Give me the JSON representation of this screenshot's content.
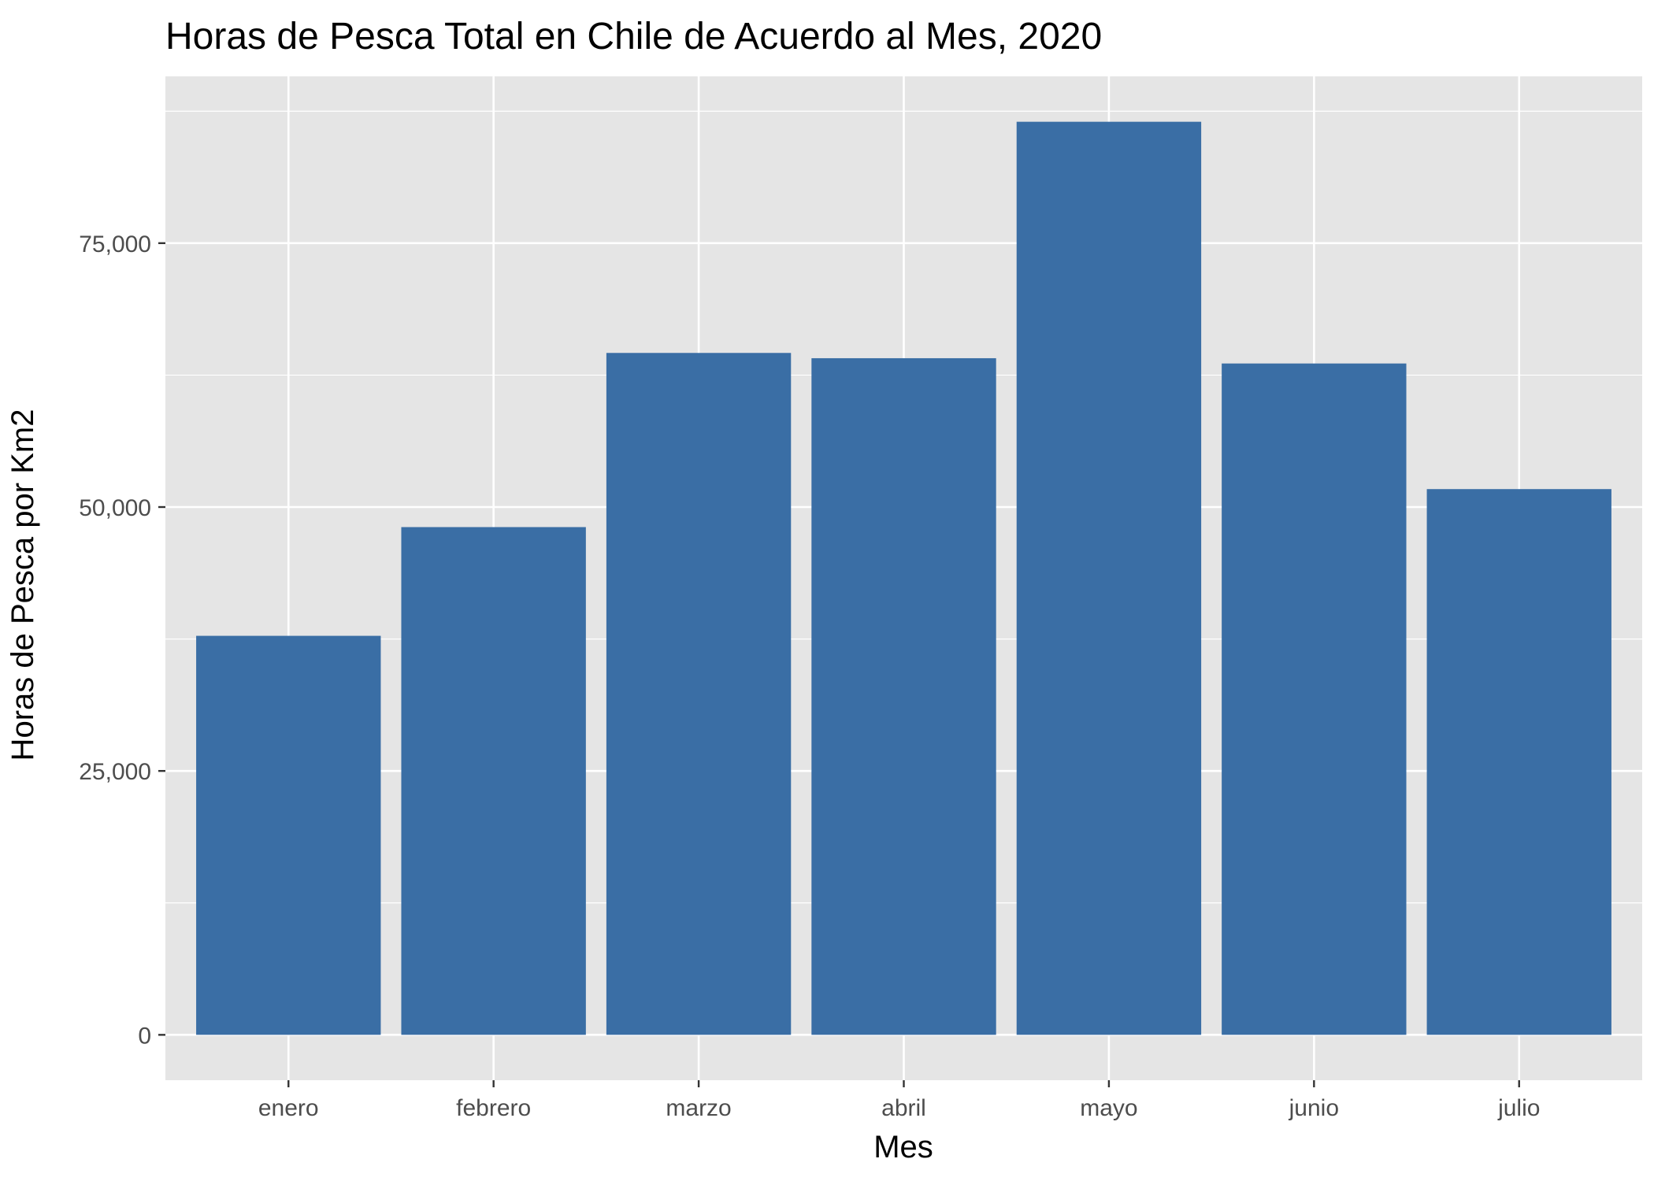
{
  "chart_data": {
    "type": "bar",
    "title": "Horas de Pesca Total en Chile de Acuerdo al Mes, 2020",
    "xlabel": "Mes",
    "ylabel": "Horas de Pesca por Km2",
    "categories": [
      "enero",
      "febrero",
      "marzo",
      "abril",
      "mayo",
      "junio",
      "julio"
    ],
    "values": [
      37800,
      48100,
      64600,
      64100,
      86500,
      63600,
      51700
    ],
    "ylim": [
      -4300,
      90800
    ],
    "yticks": [
      0,
      25000,
      50000,
      75000
    ],
    "ytick_labels": [
      "0",
      "25,000",
      "50,000",
      "75,000"
    ],
    "grid": true,
    "legend": "none",
    "colors": {
      "bar": "#3a6ea5",
      "panel": "#e5e5e5",
      "grid": "#ffffff",
      "tick": "#333333"
    }
  }
}
